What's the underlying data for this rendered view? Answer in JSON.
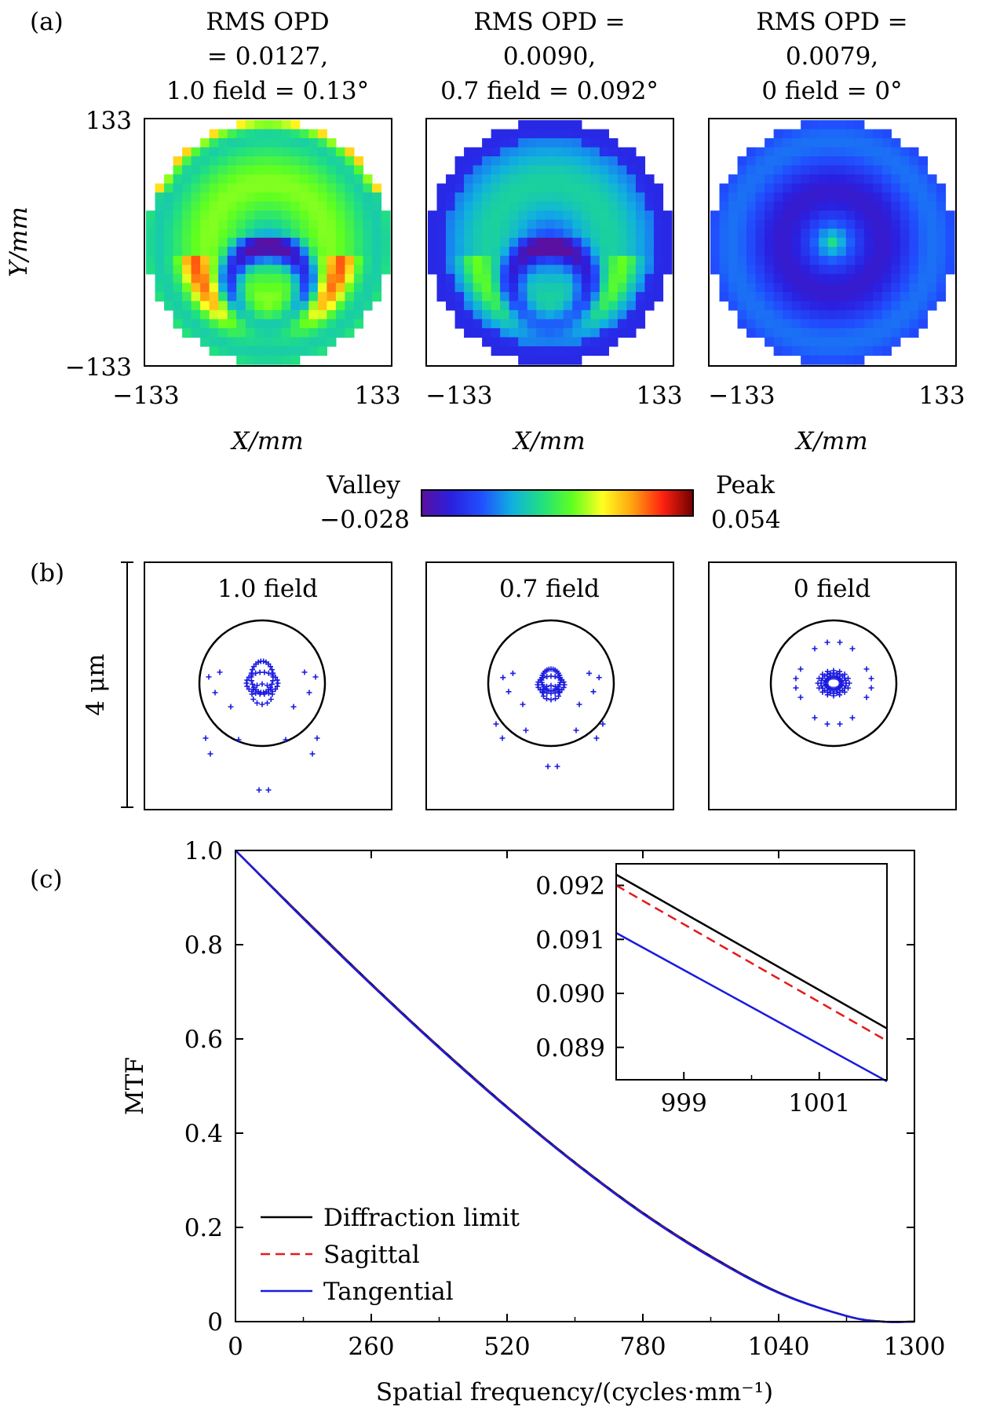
{
  "panel_a": {
    "label": "(a)",
    "maps": [
      {
        "title": [
          "RMS OPD",
          "= 0.0127,",
          "1.0 field = 0.13°"
        ],
        "rms_opd": 0.0127,
        "field": 1.0,
        "field_angle_deg": 0.13,
        "pattern": "crescent-strong"
      },
      {
        "title": [
          "RMS OPD =",
          "0.0090,",
          "0.7 field = 0.092°"
        ],
        "rms_opd": 0.009,
        "field": 0.7,
        "field_angle_deg": 0.092,
        "pattern": "crescent-medium"
      },
      {
        "title": [
          "RMS OPD =",
          "0.0079,",
          "0 field = 0°"
        ],
        "rms_opd": 0.0079,
        "field": 0,
        "field_angle_deg": 0,
        "pattern": "rings"
      }
    ],
    "x_axis_label": "X/mm",
    "y_axis_label": "Y/mm",
    "x_ticks": [
      "−133",
      "133"
    ],
    "y_ticks": [
      "133",
      "−133"
    ],
    "colorbar": {
      "valley_label": "Valley",
      "valley_value": "−0.028",
      "peak_label": "Peak",
      "peak_value": "0.054",
      "min": -0.028,
      "max": 0.054,
      "colors": [
        "#5a10a0",
        "#2a20e0",
        "#2050ff",
        "#10b0e0",
        "#20e080",
        "#60ff20",
        "#ffff20",
        "#ffa010",
        "#ff2010",
        "#700000"
      ]
    }
  },
  "panel_b": {
    "label": "(b)",
    "scale_label": "4 μm",
    "spots": [
      {
        "title": "1.0 field",
        "field": 1.0
      },
      {
        "title": "0.7 field",
        "field": 0.7
      },
      {
        "title": "0 field",
        "field": 0
      }
    ],
    "marker_color": "#1a1adf"
  },
  "chart_data": {
    "type": "line",
    "label": "(c)",
    "xlabel": "Spatial frequency/(cycles·mm⁻¹)",
    "ylabel": "MTF",
    "xlim": [
      0,
      1300
    ],
    "ylim": [
      0,
      1.0
    ],
    "x_ticks": [
      0,
      260,
      520,
      780,
      1040,
      1300
    ],
    "x_tick_labels": [
      "0",
      "260",
      "520",
      "780",
      "1040",
      "1300"
    ],
    "y_ticks": [
      0,
      0.2,
      0.4,
      0.6,
      0.8,
      1.0
    ],
    "y_tick_labels": [
      "0",
      "0.2",
      "0.4",
      "0.6",
      "0.8",
      "1.0"
    ],
    "legend_position": "lower-left",
    "series": [
      {
        "name": "Diffraction limit",
        "color": "#000000",
        "dash": "solid",
        "x": [
          0,
          130,
          260,
          390,
          520,
          650,
          780,
          910,
          1040,
          1170,
          1240,
          1300
        ],
        "y": [
          1.0,
          0.857,
          0.717,
          0.583,
          0.456,
          0.338,
          0.231,
          0.139,
          0.062,
          0.012,
          0.0,
          0.0
        ]
      },
      {
        "name": "Sagittal",
        "color": "#e41a1c",
        "dash": "dashed",
        "x": [
          0,
          130,
          260,
          390,
          520,
          650,
          780,
          910,
          1040,
          1170,
          1240,
          1300
        ],
        "y": [
          1.0,
          0.856,
          0.716,
          0.582,
          0.455,
          0.337,
          0.23,
          0.138,
          0.061,
          0.012,
          0.0,
          0.0
        ]
      },
      {
        "name": "Tangential",
        "color": "#1a1adf",
        "dash": "solid",
        "x": [
          0,
          130,
          260,
          390,
          520,
          650,
          780,
          910,
          1040,
          1170,
          1240,
          1300
        ],
        "y": [
          1.0,
          0.855,
          0.715,
          0.581,
          0.454,
          0.336,
          0.229,
          0.137,
          0.061,
          0.012,
          0.0,
          0.0
        ]
      }
    ],
    "inset": {
      "xlim": [
        998,
        1002
      ],
      "ylim": [
        0.0884,
        0.0924
      ],
      "x_ticks": [
        999,
        1001
      ],
      "x_tick_labels": [
        "999",
        "1001"
      ],
      "y_ticks": [
        0.089,
        0.09,
        0.091,
        0.092
      ],
      "y_tick_labels": [
        "0.089",
        "0.090",
        "0.091",
        "0.092"
      ],
      "series": [
        {
          "name": "Diffraction limit",
          "x": [
            998,
            1002
          ],
          "y": [
            0.0922,
            0.08935
          ]
        },
        {
          "name": "Sagittal",
          "x": [
            998,
            1002
          ],
          "y": [
            0.092,
            0.08912
          ]
        },
        {
          "name": "Tangential",
          "x": [
            998,
            1002
          ],
          "y": [
            0.09112,
            0.08837
          ]
        }
      ]
    }
  }
}
